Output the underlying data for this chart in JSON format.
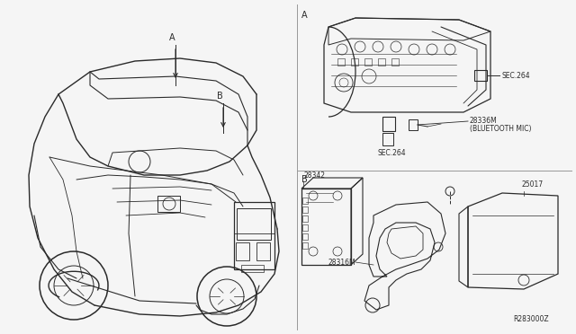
{
  "bg_color": "#f5f5f5",
  "line_color": "#2a2a2a",
  "fig_width": 6.4,
  "fig_height": 3.72,
  "dpi": 100,
  "labels": {
    "A_marker_right": "A",
    "B_marker_right": "B",
    "A_marker_car": "A",
    "B_marker_car": "B",
    "sec264_top": "SEC.264",
    "sec264_bot": "SEC.264",
    "bluetooth_part": "28336M",
    "bluetooth_name": "(BLUETOOTH MIC)",
    "part_28342": "28342",
    "part_28316M": "28316M",
    "part_25017": "25017",
    "diagram_code": "R283000Z"
  }
}
